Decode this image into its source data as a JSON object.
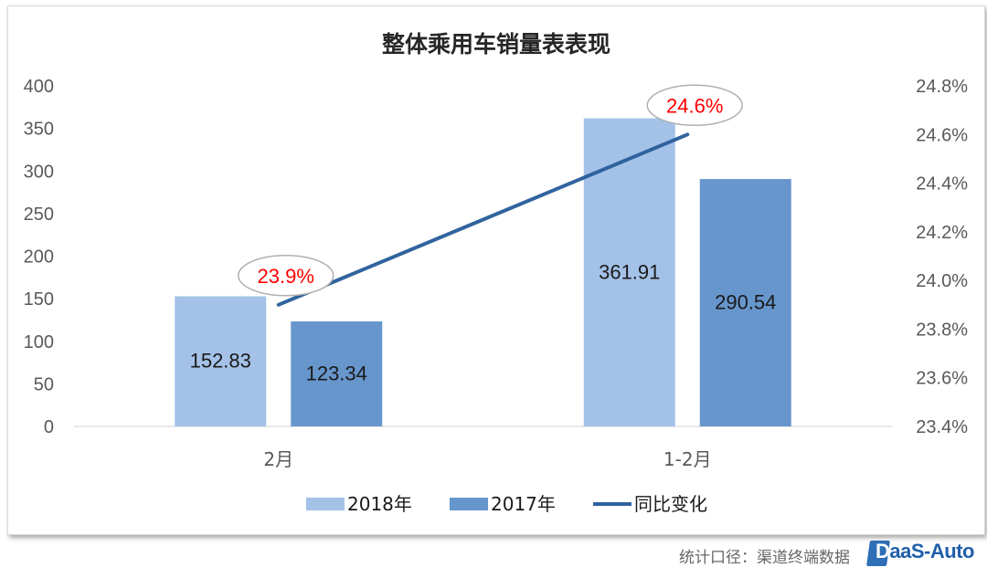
{
  "chart_data": {
    "type": "bar",
    "title": "整体乘用车销量表表现",
    "categories": [
      "2月",
      "1-2月"
    ],
    "series": [
      {
        "name": "2018年",
        "kind": "bar",
        "axis": "left",
        "color": "#a4c2e8",
        "values": [
          152.83,
          361.91
        ]
      },
      {
        "name": "2017年",
        "kind": "bar",
        "axis": "left",
        "color": "#6796cd",
        "values": [
          123.34,
          290.54
        ]
      },
      {
        "name": "同比变化",
        "kind": "line",
        "axis": "right",
        "color": "#30639e",
        "values": [
          23.9,
          24.6
        ]
      }
    ],
    "data_labels": {
      "bars": [
        [
          "152.83",
          "361.91"
        ],
        [
          "123.34",
          "290.54"
        ]
      ],
      "line": [
        "23.9%",
        "24.6%"
      ]
    },
    "y_left": {
      "min": 0,
      "max": 400,
      "ticks": [
        "0",
        "50",
        "100",
        "150",
        "200",
        "250",
        "300",
        "350",
        "400"
      ]
    },
    "y_right": {
      "min": 23.4,
      "max": 24.8,
      "ticks": [
        "23.4%",
        "23.6%",
        "23.8%",
        "24.0%",
        "24.2%",
        "24.4%",
        "24.6%",
        "24.8%"
      ]
    },
    "legend_position": "bottom",
    "grid": false
  },
  "footer": {
    "source": "统计口径：渠道终端数据",
    "logo_first": "D",
    "logo_rest": "aaS-Auto"
  }
}
